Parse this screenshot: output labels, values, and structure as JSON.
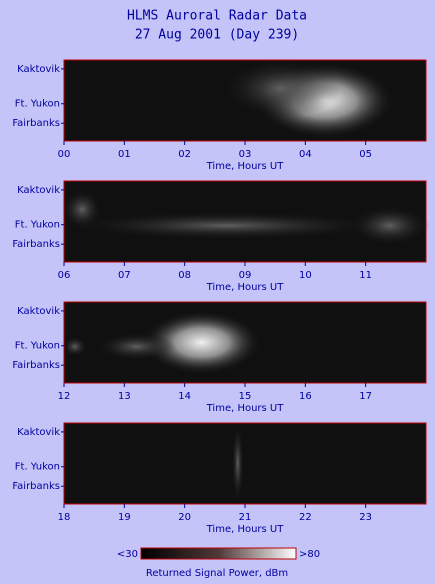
{
  "title": [
    "HLMS Auroral Radar Data",
    "27 Aug 2001 (Day 239)"
  ],
  "chart_data": [
    {
      "type": "heatmap",
      "categories": [
        "Kaktovik",
        "Ft. Yukon",
        "Fairbanks"
      ],
      "xlabel": "Time, Hours UT",
      "xlim": [
        0,
        6
      ],
      "xticks": [
        {
          "value": 0,
          "label": "00"
        },
        {
          "value": 1,
          "label": "01"
        },
        {
          "value": 2,
          "label": "02"
        },
        {
          "value": 3,
          "label": "03"
        },
        {
          "value": 4,
          "label": "04"
        },
        {
          "value": 5,
          "label": "05"
        }
      ]
    },
    {
      "type": "heatmap",
      "categories": [
        "Kaktovik",
        "Ft. Yukon",
        "Fairbanks"
      ],
      "xlabel": "Time, Hours UT",
      "xlim": [
        6,
        12
      ],
      "xticks": [
        {
          "value": 6,
          "label": "06"
        },
        {
          "value": 7,
          "label": "07"
        },
        {
          "value": 8,
          "label": "08"
        },
        {
          "value": 9,
          "label": "09"
        },
        10,
        11
      ]
    },
    {
      "type": "heatmap",
      "categories": [
        "Kaktovik",
        "Ft. Yukon",
        "Fairbanks"
      ],
      "xlabel": "Time, Hours UT",
      "xlim": [
        12,
        18
      ],
      "xticks": [
        12,
        13,
        14,
        15,
        16,
        17
      ]
    },
    {
      "type": "heatmap",
      "categories": [
        "Kaktovik",
        "Ft. Yukon",
        "Fairbanks"
      ],
      "xlabel": "Time, Hours UT",
      "xlim": [
        18,
        24
      ],
      "xticks": [
        18,
        19,
        20,
        21,
        22,
        23
      ]
    }
  ],
  "colorbar": {
    "label": "Returned Signal Power, dBm",
    "lim": [
      30,
      80
    ],
    "ticks": [
      {
        "value": 30,
        "label": "<30"
      },
      {
        "value": 80,
        "label": ">80"
      }
    ]
  }
}
